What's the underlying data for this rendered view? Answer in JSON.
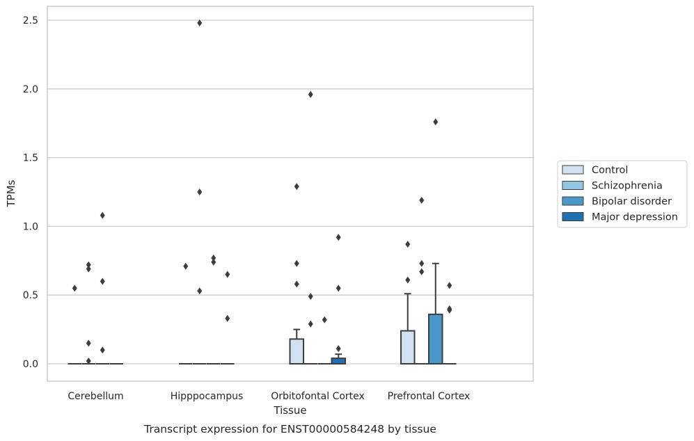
{
  "chart_data": {
    "type": "box",
    "title": "",
    "xlabel": "Tissue",
    "ylabel": "TPMs",
    "caption": "Transcript expression for ENST00000584248 by tissue",
    "categories": [
      "Cerebellum",
      "Hipppocampus",
      "Orbitofontal Cortex",
      "Prefrontal Cortex"
    ],
    "ylim": [
      -0.12,
      2.61
    ],
    "yticks": [
      0.0,
      0.5,
      1.0,
      1.5,
      2.0,
      2.5
    ],
    "ytick_labels": [
      "0.0",
      "0.5",
      "1.0",
      "1.5",
      "2.0",
      "2.5"
    ],
    "grid": "horizontal",
    "legend_position": "right",
    "series": [
      {
        "name": "Control",
        "color": "#d0e1f2",
        "boxes": [
          {
            "q1": 0,
            "median": 0,
            "q3": 0,
            "whisker_low": 0,
            "whisker_high": 0,
            "outliers": [
              0.55
            ]
          },
          {
            "q1": 0,
            "median": 0,
            "q3": 0,
            "whisker_low": 0,
            "whisker_high": 0,
            "outliers": [
              0.71
            ]
          },
          {
            "q1": 0,
            "median": 0,
            "q3": 0.18,
            "whisker_low": 0,
            "whisker_high": 0.25,
            "outliers": [
              1.29,
              0.73,
              0.58
            ]
          },
          {
            "q1": 0,
            "median": 0,
            "q3": 0.24,
            "whisker_low": 0,
            "whisker_high": 0.51,
            "outliers": [
              0.87,
              0.61
            ]
          }
        ]
      },
      {
        "name": "Schizophrenia",
        "color": "#94c4df",
        "boxes": [
          {
            "q1": 0,
            "median": 0,
            "q3": 0,
            "whisker_low": 0,
            "whisker_high": 0,
            "outliers": [
              0.72,
              0.69,
              0.15,
              0.02
            ]
          },
          {
            "q1": 0,
            "median": 0,
            "q3": 0,
            "whisker_low": 0,
            "whisker_high": 0,
            "outliers": [
              2.48,
              1.25,
              0.53
            ]
          },
          {
            "q1": 0,
            "median": 0,
            "q3": 0,
            "whisker_low": 0,
            "whisker_high": 0,
            "outliers": [
              1.96,
              0.49,
              0.29
            ]
          },
          {
            "q1": 0,
            "median": 0,
            "q3": 0,
            "whisker_low": 0,
            "whisker_high": 0,
            "outliers": [
              1.19,
              0.73,
              0.67
            ]
          }
        ]
      },
      {
        "name": "Bipolar disorder",
        "color": "#4a98c9",
        "boxes": [
          {
            "q1": 0,
            "median": 0,
            "q3": 0,
            "whisker_low": 0,
            "whisker_high": 0,
            "outliers": [
              1.08,
              0.6,
              0.1
            ]
          },
          {
            "q1": 0,
            "median": 0,
            "q3": 0,
            "whisker_low": 0,
            "whisker_high": 0,
            "outliers": [
              0.77,
              0.74
            ]
          },
          {
            "q1": 0,
            "median": 0,
            "q3": 0,
            "whisker_low": 0,
            "whisker_high": 0,
            "outliers": [
              0.32
            ]
          },
          {
            "q1": 0,
            "median": 0,
            "q3": 0.36,
            "whisker_low": 0,
            "whisker_high": 0.73,
            "outliers": [
              1.76
            ]
          }
        ]
      },
      {
        "name": "Major depression",
        "color": "#2070b4",
        "boxes": [
          {
            "q1": 0,
            "median": 0,
            "q3": 0,
            "whisker_low": 0,
            "whisker_high": 0,
            "outliers": []
          },
          {
            "q1": 0,
            "median": 0,
            "q3": 0,
            "whisker_low": 0,
            "whisker_high": 0,
            "outliers": [
              0.65,
              0.33
            ]
          },
          {
            "q1": 0,
            "median": 0,
            "q3": 0.04,
            "whisker_low": 0,
            "whisker_high": 0.07,
            "outliers": [
              0.92,
              0.55,
              0.11
            ]
          },
          {
            "q1": 0,
            "median": 0,
            "q3": 0,
            "whisker_low": 0,
            "whisker_high": 0,
            "outliers": [
              0.57,
              0.4,
              0.39
            ]
          }
        ]
      }
    ]
  },
  "colors": {
    "grid": "#cccccc",
    "frame": "#cccccc",
    "box_edge": "#3d3d3d",
    "outlier": "#3d3d3d"
  }
}
